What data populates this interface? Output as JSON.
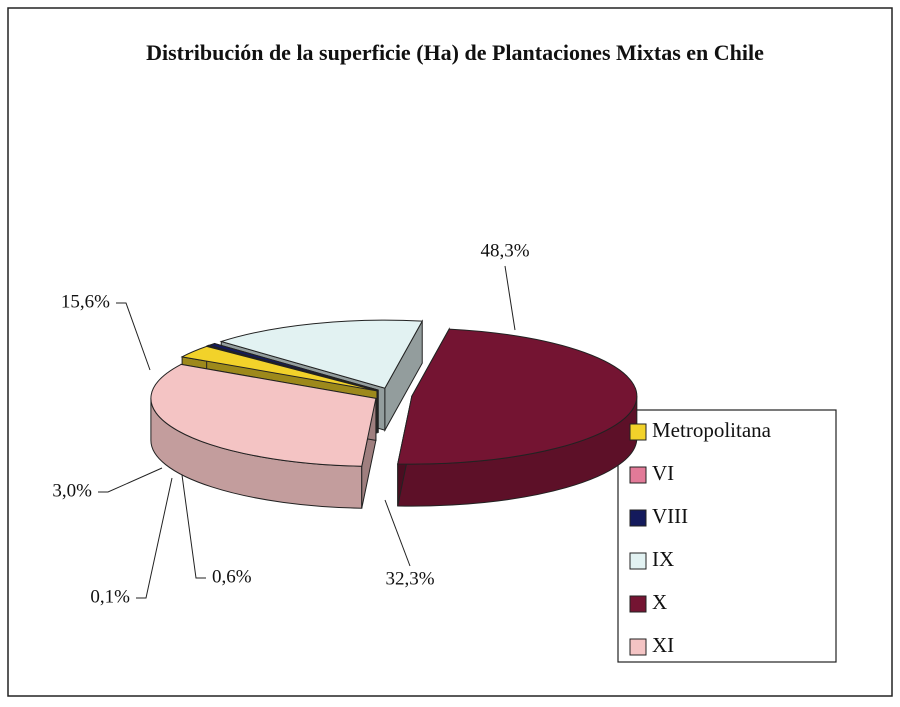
{
  "chart_data": {
    "type": "pie",
    "title": "Distribución de la superficie (Ha) de Plantaciones Mixtas en Chile",
    "categories": [
      "Metropolitana",
      "VI",
      "VIII",
      "IX",
      "X",
      "XI"
    ],
    "values": [
      3.0,
      0.1,
      0.6,
      15.6,
      48.3,
      32.3
    ],
    "value_labels": [
      "3,0%",
      "0,1%",
      "0,6%",
      "15,6%",
      "48,3%",
      "32,3%"
    ],
    "colors": [
      "#f2d22a",
      "#e27a98",
      "#141a5c",
      "#e2f2f2",
      "#741432",
      "#f4c4c4"
    ],
    "legend": "right"
  }
}
